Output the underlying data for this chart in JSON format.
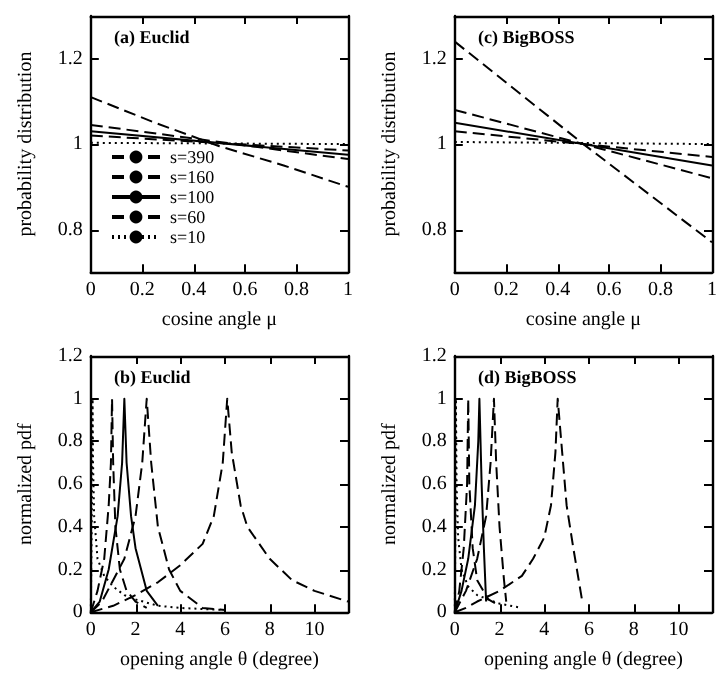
{
  "chart_data": [
    {
      "type": "line",
      "title": "(a) Euclid",
      "xlabel": "cosine angle μ",
      "ylabel": "probability distribution",
      "xlim": [
        0,
        1
      ],
      "ylim": [
        0.7,
        1.3
      ],
      "xticks": [
        0,
        0.2,
        0.4,
        0.6,
        0.8,
        1
      ],
      "yticks": [
        0.8,
        1,
        1.2
      ],
      "grid": false,
      "marker": "none",
      "legend": "bottom left",
      "series": [
        {
          "name": "s=390",
          "color": "#000000",
          "line_style": "dashed",
          "x": [
            0,
            0.25,
            0.5,
            0.75,
            1
          ],
          "values": [
            1.11,
            1.05,
            0.995,
            0.95,
            0.9
          ]
        },
        {
          "name": "s=160",
          "color": "#000000",
          "line_style": "dashed",
          "x": [
            0,
            1
          ],
          "values": [
            1.045,
            0.965
          ]
        },
        {
          "name": "s=100",
          "color": "#000000",
          "line_style": "solid",
          "x": [
            0,
            1
          ],
          "values": [
            1.03,
            0.975
          ]
        },
        {
          "name": "s=60",
          "color": "#000000",
          "line_style": "dashed",
          "x": [
            0,
            1
          ],
          "values": [
            1.02,
            0.985
          ]
        },
        {
          "name": "s=10",
          "color": "#000000",
          "line_style": "dotted",
          "x": [
            0,
            1
          ],
          "values": [
            1.003,
            1.0
          ]
        }
      ]
    },
    {
      "type": "line",
      "title": "(c) BigBOSS",
      "xlabel": "cosine angle μ",
      "ylabel": "probability distribution",
      "xlim": [
        0,
        1
      ],
      "ylim": [
        0.7,
        1.3
      ],
      "xticks": [
        0,
        0.2,
        0.4,
        0.6,
        0.8,
        1
      ],
      "yticks": [
        0.8,
        1,
        1.2
      ],
      "grid": false,
      "marker": "none",
      "series": [
        {
          "color": "#000000",
          "line_style": "dashed",
          "x": [
            0,
            0.5,
            1
          ],
          "values": [
            1.24,
            1.0,
            0.77
          ]
        },
        {
          "color": "#000000",
          "line_style": "dashed",
          "x": [
            0,
            1
          ],
          "values": [
            1.08,
            0.92
          ]
        },
        {
          "color": "#000000",
          "line_style": "solid",
          "x": [
            0,
            1
          ],
          "values": [
            1.05,
            0.95
          ]
        },
        {
          "color": "#000000",
          "line_style": "dashed",
          "x": [
            0,
            1
          ],
          "values": [
            1.03,
            0.97
          ]
        },
        {
          "color": "#000000",
          "line_style": "dotted",
          "x": [
            0,
            1
          ],
          "values": [
            1.005,
            1.0
          ]
        }
      ]
    },
    {
      "type": "line",
      "title": "(b) Euclid",
      "xlabel": "opening angle θ (degree)",
      "ylabel": "normalized pdf",
      "xlim": [
        0,
        11.5
      ],
      "ylim": [
        0,
        1.2
      ],
      "xticks": [
        0,
        2,
        4,
        6,
        8,
        10
      ],
      "yticks": [
        0,
        0.2,
        0.4,
        0.6,
        0.8,
        1,
        1.2
      ],
      "grid": false,
      "marker": "none",
      "series": [
        {
          "color": "#000000",
          "line_style": "dashed",
          "x": [
            0,
            1,
            2,
            3,
            4,
            5,
            5.5,
            5.9,
            6.1,
            6.3,
            6.7,
            7,
            8,
            9,
            10,
            11.5
          ],
          "values": [
            0,
            0.03,
            0.08,
            0.14,
            0.22,
            0.32,
            0.45,
            0.7,
            1,
            0.75,
            0.5,
            0.4,
            0.25,
            0.15,
            0.1,
            0.05
          ]
        },
        {
          "color": "#000000",
          "line_style": "dashed",
          "x": [
            0,
            0.5,
            1,
            1.5,
            2,
            2.3,
            2.5,
            2.7,
            3,
            3.5,
            4,
            5,
            6
          ],
          "values": [
            0,
            0.05,
            0.15,
            0.25,
            0.45,
            0.7,
            1,
            0.7,
            0.4,
            0.2,
            0.1,
            0.02,
            0.01
          ]
        },
        {
          "color": "#000000",
          "line_style": "solid",
          "x": [
            0,
            0.4,
            0.8,
            1.2,
            1.4,
            1.5,
            1.6,
            1.8,
            2,
            2.5,
            3
          ],
          "values": [
            0,
            0.05,
            0.2,
            0.45,
            0.7,
            1,
            0.7,
            0.45,
            0.3,
            0.1,
            0.03
          ]
        },
        {
          "color": "#000000",
          "line_style": "dashed",
          "x": [
            0,
            0.3,
            0.6,
            0.8,
            0.9,
            0.95,
            1,
            1.1,
            1.3,
            1.6,
            2,
            2.5
          ],
          "values": [
            0,
            0.1,
            0.25,
            0.5,
            0.7,
            1,
            0.7,
            0.4,
            0.2,
            0.1,
            0.05,
            0.02
          ]
        },
        {
          "color": "#000000",
          "line_style": "dotted",
          "x": [
            0,
            0.05,
            0.08,
            0.1,
            0.15,
            0.3,
            0.6,
            1,
            1.5,
            2,
            3,
            4,
            6
          ],
          "values": [
            0,
            0.5,
            1,
            0.7,
            0.45,
            0.25,
            0.17,
            0.12,
            0.08,
            0.06,
            0.03,
            0.02,
            0.01
          ]
        }
      ]
    },
    {
      "type": "line",
      "title": "(d) BigBOSS",
      "xlabel": "opening angle θ (degree)",
      "ylabel": "normalized pdf",
      "xlim": [
        0,
        11.5
      ],
      "ylim": [
        0,
        1.2
      ],
      "xticks": [
        0,
        2,
        4,
        6,
        8,
        10
      ],
      "yticks": [
        0,
        0.2,
        0.4,
        0.6,
        0.8,
        1,
        1.2
      ],
      "grid": false,
      "marker": "none",
      "series": [
        {
          "color": "#000000",
          "line_style": "dashed",
          "x": [
            0,
            0.5,
            1,
            2,
            3,
            3.5,
            4,
            4.3,
            4.5,
            4.6,
            4.8,
            5,
            5.3,
            5.7
          ],
          "values": [
            0,
            0.02,
            0.05,
            0.1,
            0.17,
            0.25,
            0.35,
            0.5,
            0.75,
            1,
            0.75,
            0.5,
            0.3,
            0.05
          ]
        },
        {
          "color": "#000000",
          "line_style": "dashed",
          "x": [
            0,
            0.5,
            1,
            1.4,
            1.6,
            1.75,
            1.85,
            2,
            2.2,
            2.3
          ],
          "values": [
            0,
            0.1,
            0.25,
            0.45,
            0.7,
            1,
            0.7,
            0.4,
            0.15,
            0.05
          ]
        },
        {
          "color": "#000000",
          "line_style": "solid",
          "x": [
            0,
            0.3,
            0.6,
            0.9,
            1.05,
            1.1,
            1.2,
            1.3,
            1.4
          ],
          "values": [
            0,
            0.1,
            0.25,
            0.5,
            0.8,
            1,
            0.6,
            0.3,
            0.05
          ]
        },
        {
          "color": "#000000",
          "line_style": "dashed",
          "x": [
            0,
            0.2,
            0.4,
            0.55,
            0.6,
            0.65,
            0.8,
            1,
            1.5,
            2
          ],
          "values": [
            0,
            0.1,
            0.3,
            0.6,
            1,
            0.6,
            0.3,
            0.15,
            0.06,
            0.03
          ]
        },
        {
          "color": "#000000",
          "line_style": "dotted",
          "x": [
            0,
            0.03,
            0.05,
            0.08,
            0.15,
            0.3,
            0.6,
            1,
            2,
            3
          ],
          "values": [
            0,
            0.5,
            1,
            0.6,
            0.35,
            0.2,
            0.12,
            0.08,
            0.04,
            0.02
          ]
        }
      ]
    }
  ]
}
